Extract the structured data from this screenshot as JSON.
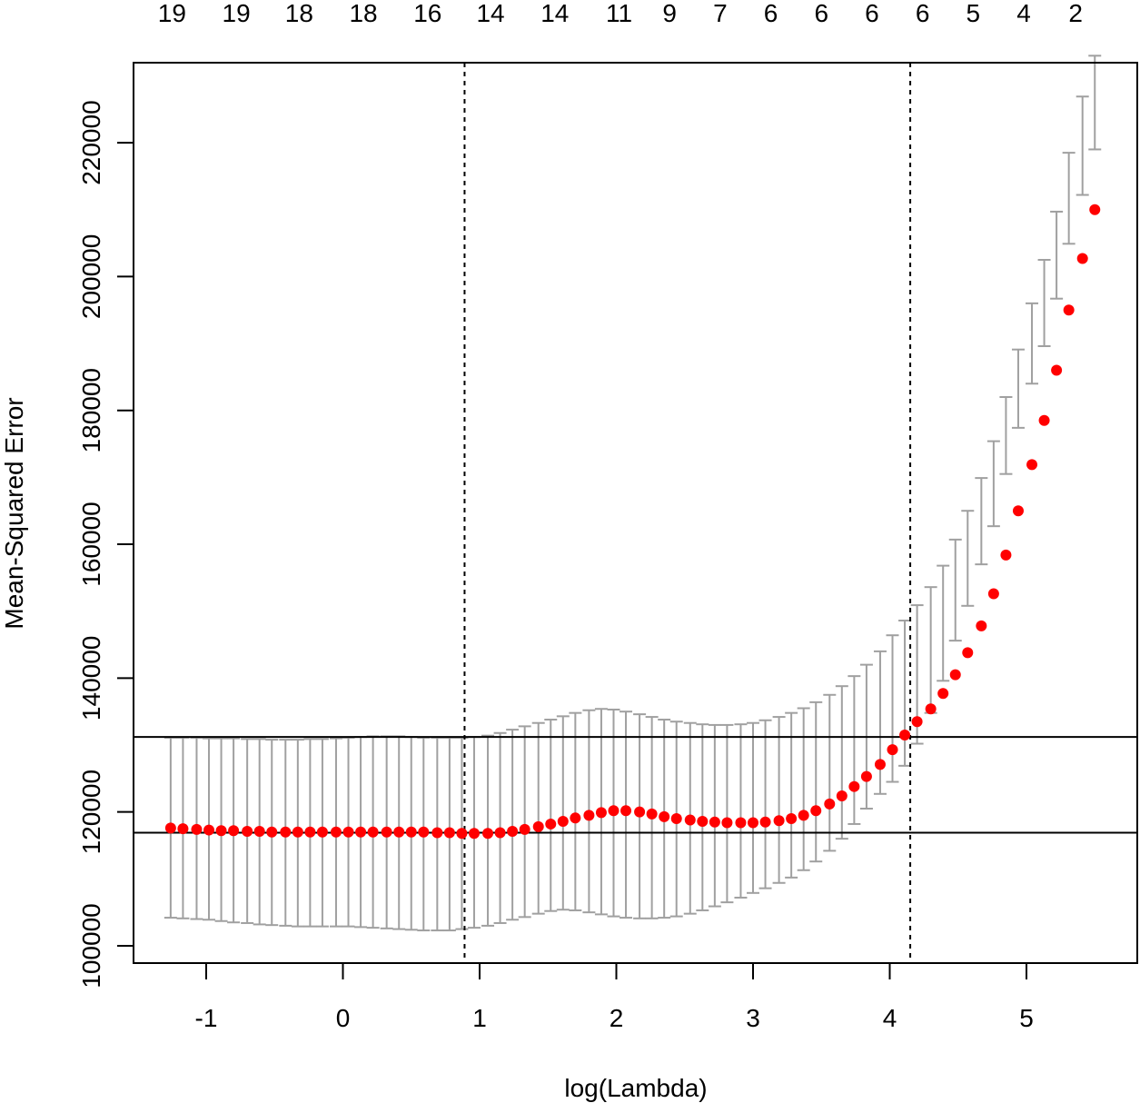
{
  "chart_data": {
    "type": "scatter",
    "title": "",
    "xlabel": "log(Lambda)",
    "ylabel": "Mean-Squared Error",
    "xlim": [
      -1.5,
      5.85
    ],
    "ylim": [
      97000,
      232000
    ],
    "xticks": [
      -1,
      0,
      1,
      2,
      3,
      4,
      5
    ],
    "yticks": [
      100000,
      120000,
      140000,
      160000,
      180000,
      200000,
      220000
    ],
    "top_axis_labels": [
      {
        "x": -1.25,
        "label": "19"
      },
      {
        "x": -0.78,
        "label": "19"
      },
      {
        "x": -0.32,
        "label": "18"
      },
      {
        "x": 0.15,
        "label": "18"
      },
      {
        "x": 0.62,
        "label": "16"
      },
      {
        "x": 1.08,
        "label": "14"
      },
      {
        "x": 1.55,
        "label": "14"
      },
      {
        "x": 2.02,
        "label": "11"
      },
      {
        "x": 2.39,
        "label": "9"
      },
      {
        "x": 2.76,
        "label": "7"
      },
      {
        "x": 3.13,
        "label": "6"
      },
      {
        "x": 3.5,
        "label": "6"
      },
      {
        "x": 3.87,
        "label": "6"
      },
      {
        "x": 4.24,
        "label": "6"
      },
      {
        "x": 4.61,
        "label": "5"
      },
      {
        "x": 4.98,
        "label": "4"
      },
      {
        "x": 5.36,
        "label": "2"
      }
    ],
    "vlines": [
      0.89,
      4.15
    ],
    "hlines": [
      116900,
      131200
    ],
    "series": [
      {
        "x": [
          -1.26,
          -1.17,
          -1.07,
          -0.98,
          -0.89,
          -0.8,
          -0.7,
          -0.61,
          -0.52,
          -0.42,
          -0.33,
          -0.24,
          -0.15,
          -0.05,
          0.04,
          0.13,
          0.22,
          0.32,
          0.41,
          0.5,
          0.59,
          0.69,
          0.78,
          0.87,
          0.96,
          1.06,
          1.15,
          1.24,
          1.33,
          1.43,
          1.52,
          1.61,
          1.7,
          1.8,
          1.89,
          1.98,
          2.07,
          2.17,
          2.26,
          2.35,
          2.44,
          2.54,
          2.63,
          2.72,
          2.81,
          2.91,
          3.0,
          3.09,
          3.19,
          3.28,
          3.37,
          3.46,
          3.56,
          3.65,
          3.74,
          3.83,
          3.93,
          4.02,
          4.11,
          4.2,
          4.3,
          4.39,
          4.48,
          4.57,
          4.67,
          4.76,
          4.85,
          4.94,
          5.04,
          5.13,
          5.22,
          5.31,
          5.41,
          5.5
        ],
        "y": [
          117600,
          117500,
          117400,
          117300,
          117200,
          117200,
          117100,
          117100,
          117000,
          117000,
          117000,
          117000,
          117000,
          117000,
          117000,
          117000,
          117000,
          117000,
          117000,
          117000,
          117000,
          116900,
          116900,
          116800,
          116800,
          116800,
          116900,
          117100,
          117400,
          117800,
          118200,
          118600,
          119100,
          119500,
          119900,
          120200,
          120200,
          120000,
          119700,
          119300,
          119000,
          118800,
          118600,
          118500,
          118400,
          118400,
          118400,
          118500,
          118700,
          119000,
          119500,
          120200,
          121200,
          122400,
          123800,
          125300,
          127100,
          129300,
          131500,
          133500,
          135400,
          137700,
          140500,
          143800,
          147800,
          152600,
          158400,
          165000,
          171900,
          178500,
          186000,
          195000,
          202700,
          210000
        ],
        "upper": [
          131100,
          131100,
          131100,
          131000,
          131000,
          131000,
          130900,
          130900,
          130800,
          130800,
          130800,
          130900,
          130900,
          131000,
          131100,
          131200,
          131300,
          131300,
          131300,
          131200,
          131100,
          131100,
          131100,
          131100,
          131200,
          131400,
          131800,
          132300,
          132800,
          133300,
          133800,
          134300,
          134800,
          135200,
          135400,
          135300,
          135000,
          134600,
          134200,
          133800,
          133500,
          133300,
          133100,
          133000,
          133000,
          133100,
          133300,
          133700,
          134200,
          134800,
          135500,
          136400,
          137500,
          138800,
          140300,
          142000,
          144000,
          146400,
          148600,
          150900,
          153600,
          156800,
          160700,
          165000,
          169900,
          175400,
          182000,
          189100,
          196000,
          202500,
          209700,
          218500,
          226900,
          233000
        ],
        "lower": [
          104200,
          104100,
          104000,
          103900,
          103700,
          103500,
          103400,
          103200,
          103100,
          103000,
          102900,
          102900,
          102900,
          102900,
          102900,
          102800,
          102700,
          102600,
          102500,
          102400,
          102300,
          102300,
          102300,
          102500,
          102700,
          103000,
          103400,
          103900,
          104300,
          104800,
          105200,
          105400,
          105300,
          105000,
          104700,
          104400,
          104200,
          104100,
          104100,
          104200,
          104400,
          104800,
          105300,
          105900,
          106500,
          107200,
          107900,
          108600,
          109400,
          110200,
          111300,
          112600,
          114200,
          116000,
          118200,
          120500,
          122700,
          124500,
          126900,
          130200,
          134800,
          139600,
          145600,
          150800,
          157000,
          162700,
          170500,
          177400,
          184000,
          189600,
          196700,
          204900,
          212200,
          219000
        ],
        "point_color": "#ff0000",
        "errorbar_color": "#a0a0a0"
      }
    ],
    "grid": false,
    "legend": "none"
  }
}
